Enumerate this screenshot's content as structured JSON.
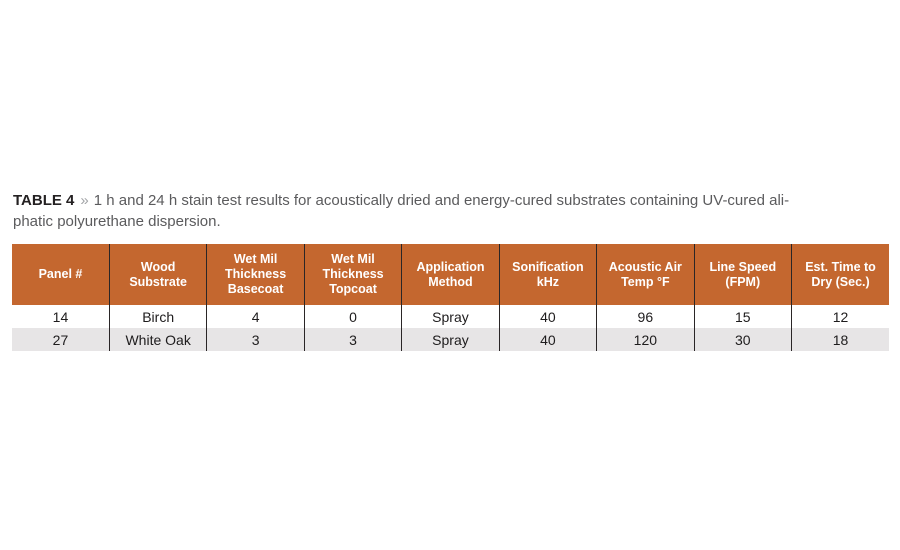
{
  "caption": {
    "label": "TABLE 4",
    "separator": "»",
    "text_line1": "1 h and 24 h stain test results for acoustically dried and energy-cured substrates containing UV-cured ali-",
    "text_line2": "phatic polyurethane dispersion."
  },
  "colors": {
    "header_bg": "#C4672F",
    "header_text": "#FFFFFF",
    "row_alt_bg": "#E7E5E6",
    "column_divider": "#2A2627",
    "caption_label": "#242122",
    "caption_separator": "#A2A4A7",
    "caption_text": "#5B5B5D",
    "cell_text": "#1E1C1D"
  },
  "table": {
    "columns": [
      "Panel #",
      "Wood Substrate",
      "Wet Mil Thickness Basecoat",
      "Wet Mil Thickness Topcoat",
      "Application Method",
      "Sonification kHz",
      "Acoustic Air Temp °F",
      "Line Speed (FPM)",
      "Est. Time to Dry (Sec.)"
    ],
    "rows": [
      [
        "14",
        "Birch",
        "4",
        "0",
        "Spray",
        "40",
        "96",
        "15",
        "12"
      ],
      [
        "27",
        "White Oak",
        "3",
        "3",
        "Spray",
        "40",
        "120",
        "30",
        "18"
      ]
    ]
  }
}
